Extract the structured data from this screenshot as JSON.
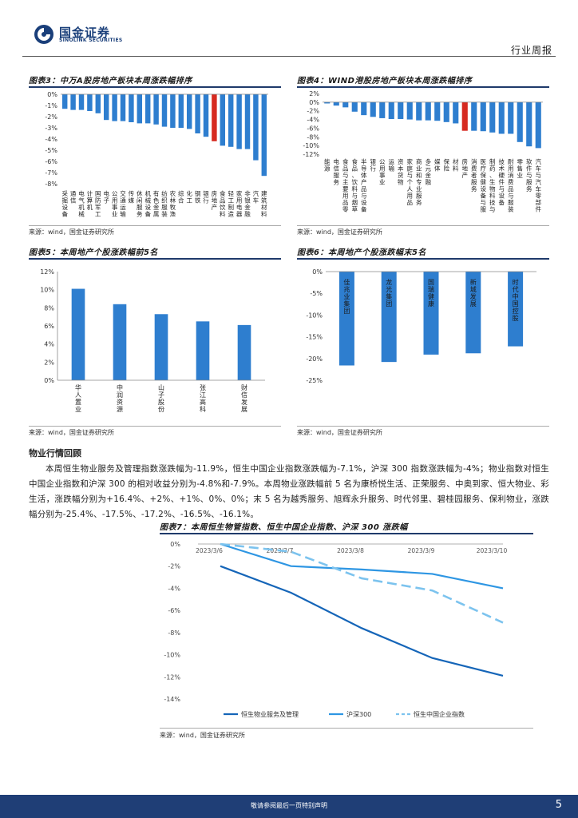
{
  "header": {
    "logo_name": "国金证券",
    "logo_sub": "SINOLINK SECURITIES",
    "section": "行业周报",
    "logo_color": "#1a3f7a"
  },
  "fig3": {
    "title": "图表3：中万A股房地产板块本周涨跌幅排序",
    "source": "来源：wind，国金证券研究所",
    "chart_data": {
      "type": "bar",
      "categories": [
        "采掘设备",
        "通信",
        "电气机械",
        "计算机",
        "国防军工",
        "电子",
        "公用事业",
        "交通运输",
        "传媒",
        "休闲服务",
        "机械设备",
        "有色金属",
        "纺织服装",
        "农林牧渔",
        "综合",
        "化工",
        "钢铁",
        "银行",
        "房地产",
        "食品饮料",
        "轻工制造",
        "家用电器",
        "非银金融",
        "汽车",
        "建筑材料"
      ],
      "values": [
        -1.3,
        -1.4,
        -1.4,
        -1.5,
        -1.7,
        -2.3,
        -2.4,
        -2.4,
        -2.5,
        -2.6,
        -2.6,
        -2.7,
        -2.9,
        -3.0,
        -3.0,
        -3.1,
        -3.5,
        -3.8,
        -4.2,
        -4.6,
        -4.7,
        -4.9,
        -4.9,
        -5.9,
        -7.3
      ],
      "highlight": "房地产",
      "ylim": [
        -8,
        0
      ],
      "yticks": [
        "0%",
        "-1%",
        "-2%",
        "-3%",
        "-4%",
        "-5%",
        "-6%",
        "-7%",
        "-8%"
      ],
      "colors": {
        "bar": "#2e7ecf",
        "highlight": "#d62a20"
      }
    }
  },
  "fig4": {
    "title": "图表4：WIND港股房地产板块本周涨跌幅排序",
    "source": "来源：wind，国金证券研究所",
    "chart_data": {
      "type": "bar",
      "categories": [
        "能源",
        "电信服务",
        "食品与主要用品零售",
        "食品、饮料与烟草",
        "半导体产品与设备",
        "银行",
        "公用事业",
        "运输",
        "资本货物",
        "家庭与个人用品",
        "商业和专业服务",
        "多元金融",
        "媒体",
        "保险",
        "材料",
        "房地产",
        "消费者服务",
        "医疗保健设备与服务",
        "制药、生物科技与生命科学",
        "技术硬件与设备",
        "耐用消费品与服装",
        "零售业",
        "软件与服务",
        "汽车与汽车零部件"
      ],
      "values": [
        -0.3,
        -0.8,
        -1.2,
        -2.2,
        -3.0,
        -3.4,
        -3.7,
        -3.9,
        -3.9,
        -4.0,
        -4.2,
        -4.2,
        -4.3,
        -4.6,
        -4.9,
        -6.6,
        -6.6,
        -6.7,
        -7.0,
        -7.3,
        -7.3,
        -9.2,
        -10.2,
        -10.6
      ],
      "highlight": "房地产",
      "ylim": [
        -12,
        2
      ],
      "yticks": [
        "2%",
        "0%",
        "-2%",
        "-4%",
        "-6%",
        "-8%",
        "-10%",
        "-12%"
      ],
      "colors": {
        "bar": "#2e7ecf",
        "highlight": "#d62a20"
      }
    }
  },
  "fig5": {
    "title": "图表5：本周地产个股涨跌幅前5名",
    "source": "来源：wind，国金证券研究所",
    "chart_data": {
      "type": "bar",
      "categories": [
        "华人置业",
        "中润资源",
        "山子股份",
        "张江高科",
        "财信发展"
      ],
      "values": [
        10.1,
        8.4,
        7.3,
        6.5,
        6.1
      ],
      "ylim": [
        0,
        12
      ],
      "yticks": [
        "12%",
        "10%",
        "8%",
        "6%",
        "4%",
        "2%",
        "0%"
      ],
      "colors": {
        "bar": "#2e7ecf"
      }
    }
  },
  "fig6": {
    "title": "图表6：本周地产个股涨跌幅末5名",
    "source": "来源：wind，国金证券研究所",
    "chart_data": {
      "type": "bar",
      "categories": [
        "佳兆业集团",
        "龙光集团",
        "国瑞健康",
        "新城发展",
        "时代中国控股"
      ],
      "values": [
        -21.6,
        -20.8,
        -19.1,
        -18.8,
        -17.2
      ],
      "ylim": [
        -25,
        0
      ],
      "yticks": [
        "0%",
        "-5%",
        "-10%",
        "-15%",
        "-20%",
        "-25%"
      ],
      "colors": {
        "bar": "#2e7ecf"
      }
    }
  },
  "section": {
    "title": "物业行情回顾",
    "para1": "本周恒生物业服务及管理指数涨跌幅为-11.9%，恒生中国企业指数涨跌幅为-7.1%，沪深 300 指数涨跌幅为-4%；物业指数对恒生中国企业指数和沪深 300 的相对收益分别为-4.8%和-7.9%。本周物业涨跌幅前 5 名为康桥悦生活、正荣服务、中奥到家、恒大物业、彩生活，涨跌幅分别为+16.4%、+2%、+1%、0%、0%；末 5 名为越秀服务、旭辉永升服务、时代邻里、碧桂园服务、保利物业，涨跌幅分别为-25.4%、-17.5%、-17.2%、-16.5%、-16.1%。"
  },
  "fig7": {
    "title": "图表7：本周恒生物管指数、恒生中国企业指数、沪深 300 涨跌幅",
    "source": "来源：wind，国金证券研究所",
    "chart_data": {
      "type": "line",
      "x": [
        "2023/3/6",
        "2023/3/7",
        "2023/3/8",
        "2023/3/9",
        "2023/3/10"
      ],
      "series": [
        {
          "name": "恒生物业服务及管理",
          "values": [
            -2.0,
            -4.4,
            -7.6,
            -10.3,
            -11.9
          ],
          "color": "#1565b8",
          "dash": "solid"
        },
        {
          "name": "沪深300",
          "values": [
            0.0,
            -2.0,
            -2.3,
            -2.7,
            -4.0
          ],
          "color": "#2e96e3",
          "dash": "solid"
        },
        {
          "name": "恒生中国企业指数",
          "values": [
            0.0,
            -0.7,
            -3.1,
            -4.2,
            -7.1
          ],
          "color": "#7cc3ee",
          "dash": "dashed"
        }
      ],
      "ylim": [
        -14,
        0
      ],
      "yticks": [
        "0%",
        "-2%",
        "-4%",
        "-6%",
        "-8%",
        "-10%",
        "-12%",
        "-14%"
      ],
      "legend": "bottom"
    }
  },
  "footer": {
    "disclaimer": "敬请参阅最后一页特别声明",
    "page": "5",
    "color": "#1f3e76"
  }
}
